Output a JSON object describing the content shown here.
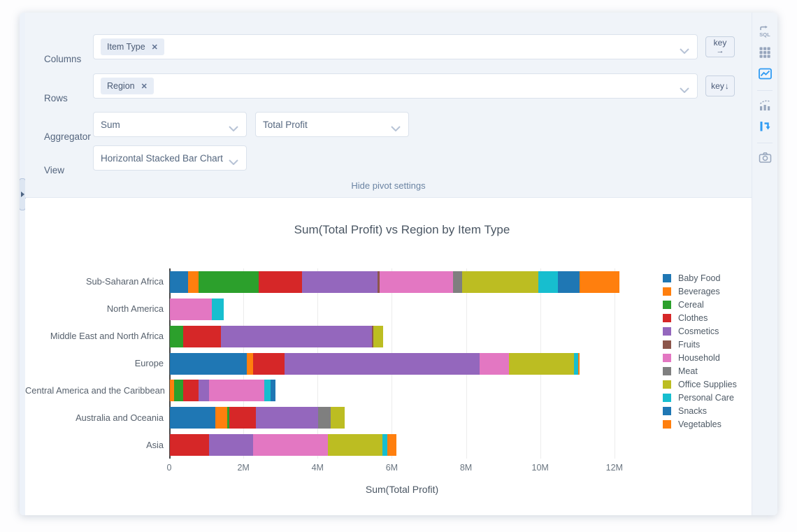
{
  "pivot_settings": {
    "columns_label": "Columns",
    "columns_tags": [
      "Item Type"
    ],
    "rows_label": "Rows",
    "rows_tags": [
      "Region"
    ],
    "aggregator_label": "Aggregator",
    "aggregator_value": "Sum",
    "aggregator_field_value": "Total Profit",
    "view_label": "View",
    "view_value": "Horizontal Stacked Bar Chart",
    "key_columns_button": {
      "label": "key",
      "arrow": "→"
    },
    "key_rows_button": {
      "label": "key",
      "arrow": "↓"
    },
    "hide_link": "Hide pivot settings"
  },
  "sidebar": {
    "icons": [
      {
        "name": "sql-icon",
        "active": false
      },
      {
        "name": "table-icon",
        "active": false
      },
      {
        "name": "chart-image-icon",
        "active": true
      },
      {
        "name": "trend-chart-icon",
        "active": false
      },
      {
        "name": "pivot-icon",
        "active": true
      },
      {
        "name": "camera-icon",
        "active": false
      }
    ],
    "active_color": "#2f9bf3",
    "inactive_color": "#97a6bd"
  },
  "chart_data": {
    "type": "bar",
    "orientation": "horizontal",
    "stacked": true,
    "title": "Sum(Total Profit) vs Region by Item Type",
    "xlabel": "Sum(Total Profit)",
    "value_unit": "M",
    "grid": true,
    "legend_position": "right",
    "xlim": [
      0,
      12.55
    ],
    "x_ticks": [
      "0",
      "2M",
      "4M",
      "6M",
      "8M",
      "10M",
      "12M"
    ],
    "x_tick_values": [
      0,
      2,
      4,
      6,
      8,
      10,
      12
    ],
    "categories": [
      "Sub-Saharan Africa",
      "North America",
      "Middle East and North Africa",
      "Europe",
      "Central America and the Caribbean",
      "Australia and Oceania",
      "Asia"
    ],
    "series": [
      {
        "name": "Baby Food",
        "color": "#1f77b4",
        "values": [
          0.49,
          0,
          0,
          2.07,
          0,
          1.23,
          0
        ]
      },
      {
        "name": "Beverages",
        "color": "#ff7f0e",
        "values": [
          0.28,
          0,
          0,
          0.18,
          0.12,
          0.31,
          0
        ]
      },
      {
        "name": "Cereal",
        "color": "#2ca02c",
        "values": [
          1.62,
          0,
          0.36,
          0,
          0.24,
          0.06,
          0
        ]
      },
      {
        "name": "Clothes",
        "color": "#d62728",
        "values": [
          1.18,
          0,
          1.02,
          0.85,
          0.42,
          0.71,
          1.05
        ]
      },
      {
        "name": "Cosmetics",
        "color": "#9467bd",
        "values": [
          2.02,
          0,
          4.07,
          5.25,
          0.28,
          1.68,
          1.19
        ]
      },
      {
        "name": "Fruits",
        "color": "#8c564b",
        "values": [
          0.06,
          0,
          0.04,
          0,
          0,
          0,
          0
        ]
      },
      {
        "name": "Household",
        "color": "#e377c2",
        "values": [
          1.98,
          1.14,
          0,
          0.79,
          1.49,
          0,
          2.01
        ]
      },
      {
        "name": "Meat",
        "color": "#7f7f7f",
        "values": [
          0.24,
          0,
          0,
          0,
          0,
          0.35,
          0
        ]
      },
      {
        "name": "Office Supplies",
        "color": "#bcbd22",
        "values": [
          2.06,
          0,
          0.25,
          1.76,
          0,
          0.37,
          1.48
        ]
      },
      {
        "name": "Personal Care",
        "color": "#17becf",
        "values": [
          0.53,
          0.31,
          0,
          0.11,
          0.17,
          0,
          0.14
        ]
      },
      {
        "name": "Snacks",
        "color": "#1f77b4",
        "values": [
          0.59,
          0,
          0,
          0,
          0.13,
          0,
          0
        ]
      },
      {
        "name": "Vegetables",
        "color": "#ff7f0e",
        "values": [
          1.06,
          0,
          0,
          0.04,
          0,
          0,
          0.23
        ]
      }
    ]
  }
}
